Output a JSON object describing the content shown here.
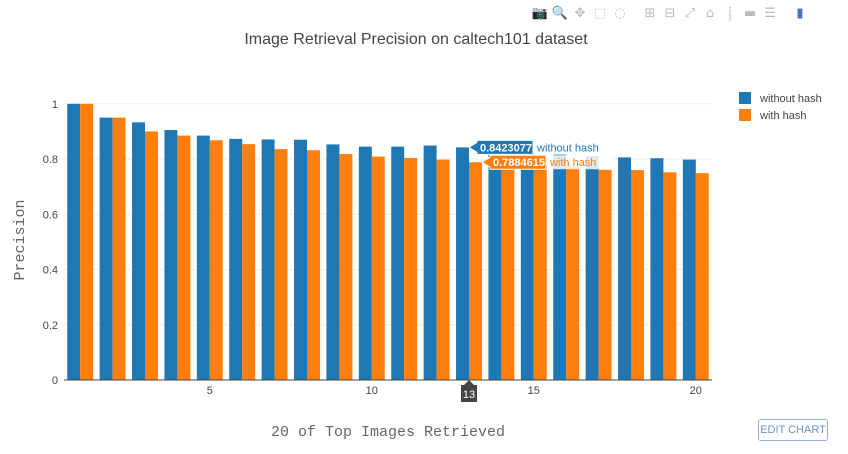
{
  "toolbar": {
    "buttons": [
      {
        "name": "camera-icon",
        "glyph": "📷"
      },
      {
        "name": "zoom-icon",
        "glyph": "🔍"
      },
      {
        "name": "pan-icon",
        "glyph": "✥"
      },
      {
        "name": "box-select-icon",
        "glyph": "⬚"
      },
      {
        "name": "lasso-select-icon",
        "glyph": "◌"
      },
      {
        "name": "zoom-in-icon",
        "glyph": "⊞"
      },
      {
        "name": "zoom-out-icon",
        "glyph": "⊟"
      },
      {
        "name": "autoscale-icon",
        "glyph": "⤢"
      },
      {
        "name": "reset-axes-icon",
        "glyph": "⌂"
      },
      {
        "name": "spike-lines-icon",
        "glyph": "⸽"
      },
      {
        "name": "hover-closest-icon",
        "glyph": "▬"
      },
      {
        "name": "hover-compare-icon",
        "glyph": "☰"
      },
      {
        "name": "plotly-logo-icon",
        "glyph": "▮"
      }
    ]
  },
  "edit_chart_label": "EDIT CHART",
  "chart_data": {
    "type": "bar",
    "title": "Image Retrieval Precision on caltech101 dataset",
    "xlabel": "20 of Top Images Retrieved",
    "ylabel": "Precision",
    "x": [
      1,
      2,
      3,
      4,
      5,
      6,
      7,
      8,
      9,
      10,
      11,
      12,
      13,
      14,
      15,
      16,
      17,
      18,
      19,
      20
    ],
    "xticks": [
      5,
      10,
      15,
      20
    ],
    "xlim": [
      0.5,
      20.5
    ],
    "ylim": [
      0,
      1.05
    ],
    "yticks": [
      0,
      0.2,
      0.4,
      0.6,
      0.8,
      1
    ],
    "ytick_labels": [
      "0",
      "0.2",
      "0.4",
      "0.6",
      "0.8",
      "1"
    ],
    "grid": true,
    "legend_position": "top-right",
    "series": [
      {
        "name": "without hash",
        "color": "#1f77b4",
        "values": [
          1.0,
          0.95,
          0.933,
          0.905,
          0.885,
          0.873,
          0.871,
          0.87,
          0.853,
          0.845,
          0.845,
          0.849,
          0.8423077,
          0.83,
          0.822,
          0.816,
          0.811,
          0.806,
          0.803,
          0.798
        ]
      },
      {
        "name": "with hash",
        "color": "#ff7f0e",
        "values": [
          1.0,
          0.95,
          0.9,
          0.885,
          0.868,
          0.854,
          0.836,
          0.832,
          0.818,
          0.809,
          0.804,
          0.798,
          0.7884615,
          0.784,
          0.779,
          0.775,
          0.761,
          0.76,
          0.752,
          0.749
        ]
      }
    ],
    "hover": {
      "x": 13,
      "x_label": "13",
      "labels": [
        {
          "value": "0.8423077",
          "series": "without hash"
        },
        {
          "value": "0.7884615",
          "series": "with hash"
        }
      ]
    }
  }
}
